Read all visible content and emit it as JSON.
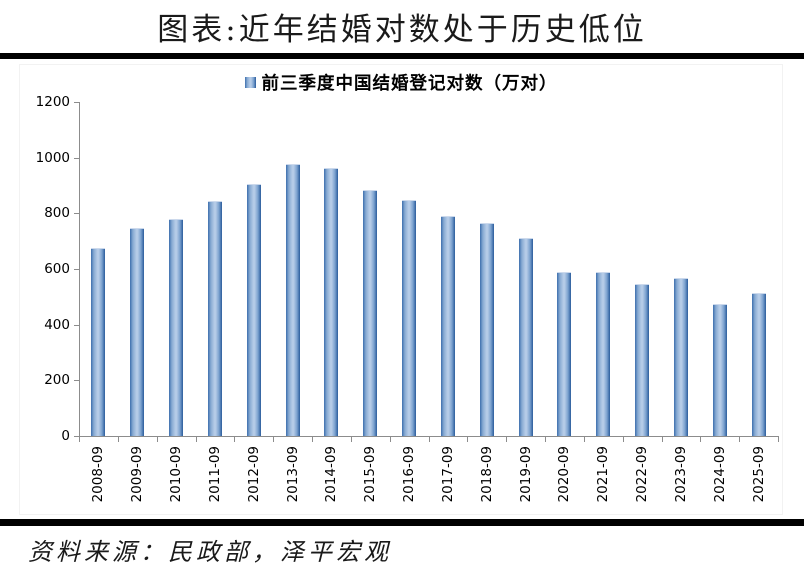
{
  "page": {
    "title": "图表:近年结婚对数处于历史低位",
    "source_note": "资料来源：民政部，泽平宏观"
  },
  "colors": {
    "bar_edge_dark": "#2b5c9c",
    "bar_edge_mid": "#3d6fae",
    "bar_center_light": "#b5cbe7",
    "axis": "#8c8c8c",
    "rule": "#000000"
  },
  "chart_data": {
    "type": "bar",
    "title": "前三季度中国结婚登记对数（万对）",
    "legend": [
      {
        "label": "前三季度中国结婚登记对数（万对）",
        "marker": "square",
        "color": "#4f81bd"
      }
    ],
    "legend_position": "top",
    "grid": false,
    "xlabel": "",
    "ylabel": "",
    "ylim": [
      0,
      1200
    ],
    "yticks": [
      0,
      200,
      400,
      600,
      800,
      1000,
      1200
    ],
    "categories": [
      "2008-09",
      "2009-09",
      "2010-09",
      "2011-09",
      "2012-09",
      "2013-09",
      "2014-09",
      "2015-09",
      "2016-09",
      "2017-09",
      "2018-09",
      "2019-09",
      "2020-09",
      "2021-09",
      "2022-09",
      "2023-09",
      "2024-09",
      "2025-09"
    ],
    "values": [
      675,
      746,
      781,
      844,
      907,
      977,
      963,
      883,
      847,
      790,
      764,
      713,
      589,
      589,
      545,
      569,
      475,
      515
    ]
  }
}
